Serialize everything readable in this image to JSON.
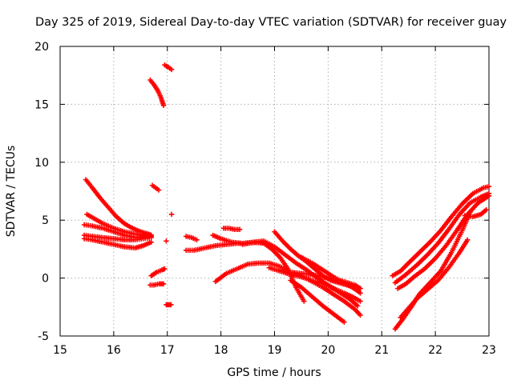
{
  "chart_data": {
    "type": "scatter",
    "title": "Day 325 of 2019, Sidereal Day-to-day VTEC variation (SDTVAR) for receiver guay",
    "xlabel": "GPS time / hours",
    "ylabel": "SDTVAR / TECUs",
    "xlim": [
      15,
      23
    ],
    "ylim": [
      -5,
      20
    ],
    "xticks": [
      "15",
      "16",
      "17",
      "18",
      "19",
      "20",
      "21",
      "22",
      "23"
    ],
    "yticks": [
      "-5",
      "0",
      "5",
      "10",
      "15",
      "20"
    ],
    "grid": true,
    "marker": "plus",
    "color": "#ff0000",
    "series": [
      {
        "name": "arc-1",
        "x": [
          15.48,
          15.6,
          15.75,
          15.9,
          16.05,
          16.2,
          16.35,
          16.5,
          16.65,
          16.7
        ],
        "y": [
          8.5,
          7.8,
          6.9,
          6.1,
          5.3,
          4.7,
          4.3,
          4.0,
          3.8,
          3.7
        ]
      },
      {
        "name": "arc-2",
        "x": [
          15.5,
          15.65,
          15.8,
          16.0,
          16.2,
          16.4,
          16.6,
          16.7
        ],
        "y": [
          5.5,
          5.1,
          4.7,
          4.3,
          4.0,
          3.8,
          3.7,
          3.7
        ]
      },
      {
        "name": "arc-3",
        "x": [
          15.45,
          15.6,
          15.8,
          16.0,
          16.2,
          16.4,
          16.55,
          16.7
        ],
        "y": [
          4.6,
          4.5,
          4.3,
          4.0,
          3.7,
          3.5,
          3.5,
          3.6
        ]
      },
      {
        "name": "arc-4",
        "x": [
          15.45,
          15.6,
          15.8,
          16.0,
          16.2,
          16.4,
          16.55,
          16.7
        ],
        "y": [
          3.7,
          3.6,
          3.5,
          3.4,
          3.3,
          3.3,
          3.4,
          3.5
        ]
      },
      {
        "name": "arc-5",
        "x": [
          15.45,
          15.6,
          15.8,
          16.0,
          16.2,
          16.4,
          16.55,
          16.7
        ],
        "y": [
          3.4,
          3.3,
          3.1,
          2.9,
          2.7,
          2.6,
          2.8,
          3.1
        ]
      },
      {
        "name": "arc-6",
        "x": [
          16.68,
          16.75,
          16.82,
          16.88,
          16.93
        ],
        "y": [
          17.1,
          16.7,
          16.2,
          15.6,
          14.9
        ]
      },
      {
        "name": "arc-7",
        "x": [
          16.95,
          16.98,
          17.02,
          17.08
        ],
        "y": [
          18.4,
          18.3,
          18.2,
          18.0
        ]
      },
      {
        "name": "arc-8",
        "x": [
          16.72,
          16.78,
          16.84
        ],
        "y": [
          8.0,
          7.8,
          7.6
        ]
      },
      {
        "name": "arc-9",
        "x": [
          16.7,
          16.8,
          16.9,
          16.95
        ],
        "y": [
          0.2,
          0.5,
          0.7,
          0.8
        ]
      },
      {
        "name": "arc-10",
        "x": [
          16.68,
          16.75,
          16.85,
          16.93
        ],
        "y": [
          -0.6,
          -0.6,
          -0.5,
          -0.5
        ]
      },
      {
        "name": "arc-11",
        "x": [
          16.98,
          17.02,
          17.07
        ],
        "y": [
          -2.3,
          -2.3,
          -2.3
        ]
      },
      {
        "name": "arc-12",
        "x": [
          17.08
        ],
        "y": [
          5.5
        ]
      },
      {
        "name": "arc-13",
        "x": [
          16.98
        ],
        "y": [
          3.2
        ]
      },
      {
        "name": "arc-14",
        "x": [
          17.35,
          17.45,
          17.55
        ],
        "y": [
          3.6,
          3.5,
          3.3
        ]
      },
      {
        "name": "arc-15",
        "x": [
          17.35,
          17.5,
          17.7,
          17.9,
          18.1,
          18.3,
          18.5,
          18.7,
          18.85
        ],
        "y": [
          2.4,
          2.4,
          2.6,
          2.8,
          2.9,
          3.0,
          3.0,
          3.1,
          3.0
        ]
      },
      {
        "name": "arc-16",
        "x": [
          17.85,
          18.0,
          18.2,
          18.4,
          18.6,
          18.8,
          18.95,
          19.1,
          19.25,
          19.4,
          19.55
        ],
        "y": [
          3.7,
          3.4,
          3.1,
          3.0,
          3.1,
          3.0,
          2.5,
          1.8,
          0.8,
          -0.8,
          -2.0
        ]
      },
      {
        "name": "arc-17",
        "x": [
          18.05,
          18.15,
          18.25,
          18.35
        ],
        "y": [
          4.3,
          4.3,
          4.2,
          4.2
        ]
      },
      {
        "name": "arc-18",
        "x": [
          17.9,
          18.1,
          18.3,
          18.5,
          18.7,
          18.9,
          19.1,
          19.3,
          19.5,
          19.7,
          19.9,
          20.1,
          20.3,
          20.5,
          20.6
        ],
        "y": [
          -0.3,
          0.4,
          0.8,
          1.2,
          1.3,
          1.3,
          1.0,
          0.5,
          0.2,
          -0.3,
          -0.8,
          -1.4,
          -2.0,
          -2.7,
          -3.2
        ]
      },
      {
        "name": "arc-19",
        "x": [
          18.4,
          18.6,
          18.8,
          19.0,
          19.2,
          19.4,
          19.6,
          19.8,
          20.0,
          20.2,
          20.4,
          20.55
        ],
        "y": [
          2.9,
          3.1,
          3.2,
          2.7,
          2.0,
          1.3,
          0.7,
          0.0,
          -0.6,
          -1.2,
          -1.8,
          -2.4
        ]
      },
      {
        "name": "arc-20",
        "x": [
          18.9,
          19.1,
          19.3,
          19.5,
          19.7,
          19.9,
          20.1,
          20.3,
          20.45,
          20.6
        ],
        "y": [
          0.9,
          0.6,
          0.3,
          0.1,
          -0.2,
          -0.5,
          -0.9,
          -1.3,
          -1.6,
          -2.0
        ]
      },
      {
        "name": "arc-21",
        "x": [
          19.1,
          19.3,
          19.5,
          19.7,
          19.9,
          20.1,
          20.3,
          20.5,
          20.6
        ],
        "y": [
          0.7,
          0.5,
          0.4,
          0.3,
          0.1,
          -0.1,
          -0.3,
          -0.6,
          -0.9
        ]
      },
      {
        "name": "arc-22",
        "x": [
          19.0,
          19.15,
          19.3,
          19.45,
          19.6,
          19.75,
          19.9,
          20.05,
          20.2,
          20.35,
          20.5,
          20.6
        ],
        "y": [
          4.0,
          3.2,
          2.5,
          1.9,
          1.4,
          0.8,
          0.2,
          -0.2,
          -0.4,
          -0.6,
          -0.8,
          -0.9
        ]
      },
      {
        "name": "arc-23",
        "x": [
          19.5,
          19.7,
          19.9,
          20.1,
          20.3,
          20.45,
          20.55,
          20.6
        ],
        "y": [
          1.8,
          1.3,
          0.7,
          0.1,
          -0.4,
          -0.8,
          -1.1,
          -1.3
        ]
      },
      {
        "name": "arc-24",
        "x": [
          19.3,
          19.5,
          19.7,
          19.9,
          20.1,
          20.3
        ],
        "y": [
          -0.2,
          -0.8,
          -1.6,
          -2.4,
          -3.1,
          -3.8
        ]
      },
      {
        "name": "arc-25",
        "x": [
          21.2,
          21.35,
          21.5,
          21.7,
          21.9,
          22.1,
          22.3,
          22.5,
          22.7,
          22.9,
          23.0
        ],
        "y": [
          0.2,
          0.6,
          1.3,
          2.2,
          3.1,
          4.1,
          5.3,
          6.4,
          7.3,
          7.8,
          7.9
        ]
      },
      {
        "name": "arc-26",
        "x": [
          21.25,
          21.45,
          21.65,
          21.85,
          22.05,
          22.25,
          22.45,
          22.65,
          22.85,
          23.0
        ],
        "y": [
          -0.4,
          0.3,
          1.1,
          2.0,
          3.0,
          4.2,
          5.5,
          6.5,
          7.0,
          7.3
        ]
      },
      {
        "name": "arc-27",
        "x": [
          21.3,
          21.45,
          21.6,
          21.8,
          22.0,
          22.2,
          22.4,
          22.6,
          22.8,
          23.0
        ],
        "y": [
          -0.9,
          -0.5,
          0.1,
          0.8,
          1.7,
          2.8,
          4.1,
          5.5,
          6.5,
          7.1
        ]
      },
      {
        "name": "arc-28",
        "x": [
          21.25,
          21.4,
          21.55,
          21.7,
          21.9,
          22.1,
          22.3,
          22.5,
          22.65
        ],
        "y": [
          -4.4,
          -3.5,
          -2.5,
          -1.4,
          -0.4,
          0.6,
          2.2,
          4.1,
          5.7
        ]
      },
      {
        "name": "arc-29",
        "x": [
          21.35,
          21.5,
          21.65,
          21.85,
          22.05,
          22.25,
          22.45,
          22.6
        ],
        "y": [
          -3.4,
          -2.6,
          -1.8,
          -1.0,
          -0.2,
          0.9,
          2.2,
          3.3
        ]
      },
      {
        "name": "arc-30",
        "x": [
          22.55,
          22.7,
          22.85,
          22.95
        ],
        "y": [
          5.4,
          5.3,
          5.5,
          5.9
        ]
      }
    ]
  }
}
